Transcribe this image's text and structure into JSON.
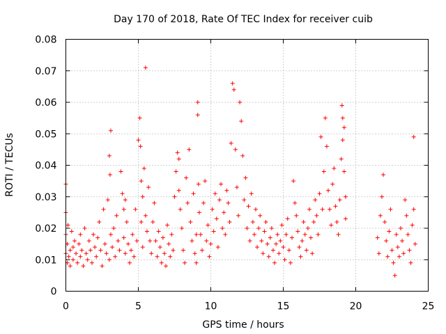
{
  "chart_data": {
    "type": "scatter",
    "title": "Day 170 of 2018, Rate Of TEC Index for receiver cuib",
    "xlabel": "GPS time / hours",
    "ylabel": "ROTI / TECUs",
    "xlim": [
      0,
      25
    ],
    "ylim": [
      0,
      0.08
    ],
    "grid": true,
    "x_ticks": [
      0,
      5,
      10,
      15,
      20,
      25
    ],
    "x_tick_labels": [
      "0",
      "5",
      "10",
      "15",
      "20",
      "25"
    ],
    "y_ticks": [
      0,
      0.01,
      0.02,
      0.03,
      0.04,
      0.05,
      0.06,
      0.07,
      0.08
    ],
    "y_tick_labels": [
      "0",
      "0.01",
      "0.02",
      "0.03",
      "0.04",
      "0.05",
      "0.06",
      "0.07",
      "0.08"
    ],
    "marker": "plus",
    "color": "#ff0000",
    "series": [
      {
        "name": "ROTI",
        "x": [
          0.0,
          0.0,
          0.0,
          0.0,
          0.1,
          0.1,
          0.15,
          0.2,
          0.3,
          0.3,
          0.4,
          0.5,
          0.5,
          0.6,
          0.7,
          0.8,
          0.9,
          1.0,
          1.0,
          1.1,
          1.2,
          1.3,
          1.4,
          1.5,
          1.6,
          1.7,
          1.8,
          1.9,
          2.0,
          2.1,
          2.2,
          2.3,
          2.4,
          2.5,
          2.6,
          2.7,
          2.8,
          2.9,
          3.0,
          3.0,
          3.05,
          3.1,
          3.1,
          3.2,
          3.3,
          3.4,
          3.5,
          3.6,
          3.7,
          3.8,
          3.9,
          4.0,
          4.0,
          4.1,
          4.1,
          4.2,
          4.3,
          4.4,
          4.5,
          4.6,
          4.7,
          4.8,
          4.9,
          5.0,
          5.1,
          5.15,
          5.2,
          5.2,
          5.3,
          5.3,
          5.4,
          5.5,
          5.5,
          5.6,
          5.7,
          5.8,
          5.9,
          6.0,
          6.1,
          6.2,
          6.3,
          6.4,
          6.5,
          6.6,
          6.7,
          6.8,
          6.9,
          7.0,
          7.1,
          7.2,
          7.3,
          7.4,
          7.5,
          7.6,
          7.7,
          7.8,
          7.8,
          7.9,
          8.0,
          8.1,
          8.2,
          8.3,
          8.4,
          8.5,
          8.6,
          8.7,
          8.8,
          8.9,
          9.0,
          9.0,
          9.1,
          9.1,
          9.15,
          9.2,
          9.3,
          9.4,
          9.5,
          9.6,
          9.7,
          9.8,
          9.9,
          10.0,
          10.1,
          10.2,
          10.3,
          10.4,
          10.5,
          10.6,
          10.7,
          10.8,
          10.9,
          11.0,
          11.1,
          11.2,
          11.3,
          11.4,
          11.5,
          11.6,
          11.7,
          11.8,
          11.9,
          12.0,
          12.1,
          12.2,
          12.3,
          12.4,
          12.5,
          12.6,
          12.7,
          12.8,
          12.9,
          13.0,
          13.1,
          13.2,
          13.3,
          13.4,
          13.5,
          13.6,
          13.7,
          13.8,
          13.9,
          14.0,
          14.1,
          14.2,
          14.3,
          14.4,
          14.5,
          14.6,
          14.7,
          14.8,
          14.9,
          15.0,
          15.1,
          15.2,
          15.3,
          15.4,
          15.5,
          15.6,
          15.7,
          15.8,
          15.9,
          16.0,
          16.1,
          16.2,
          16.3,
          16.4,
          16.5,
          16.6,
          16.7,
          16.8,
          16.9,
          17.0,
          17.1,
          17.2,
          17.3,
          17.4,
          17.5,
          17.6,
          17.7,
          17.8,
          17.9,
          18.0,
          18.1,
          18.2,
          18.3,
          18.4,
          18.5,
          18.6,
          18.7,
          18.8,
          18.9,
          19.0,
          19.05,
          19.1,
          19.1,
          19.2,
          19.2,
          19.3,
          19.3,
          21.5,
          21.6,
          21.7,
          21.8,
          21.9,
          22.0,
          22.1,
          22.2,
          22.3,
          22.4,
          22.5,
          22.6,
          22.7,
          22.8,
          22.9,
          23.0,
          23.1,
          23.2,
          23.3,
          23.4,
          23.5,
          23.6,
          23.7,
          23.8,
          23.9,
          24.0,
          24.0,
          24.1
        ],
        "y": [
          0.012,
          0.034,
          0.025,
          0.018,
          0.009,
          0.015,
          0.021,
          0.011,
          0.013,
          0.008,
          0.019,
          0.014,
          0.01,
          0.016,
          0.012,
          0.009,
          0.015,
          0.011,
          0.018,
          0.013,
          0.008,
          0.02,
          0.012,
          0.01,
          0.016,
          0.013,
          0.009,
          0.018,
          0.014,
          0.011,
          0.017,
          0.022,
          0.013,
          0.008,
          0.026,
          0.015,
          0.012,
          0.029,
          0.01,
          0.043,
          0.037,
          0.051,
          0.018,
          0.014,
          0.02,
          0.011,
          0.024,
          0.016,
          0.013,
          0.038,
          0.031,
          0.026,
          0.017,
          0.012,
          0.029,
          0.022,
          0.015,
          0.009,
          0.013,
          0.018,
          0.011,
          0.026,
          0.016,
          0.048,
          0.055,
          0.046,
          0.035,
          0.022,
          0.014,
          0.03,
          0.039,
          0.071,
          0.024,
          0.019,
          0.033,
          0.016,
          0.012,
          0.022,
          0.028,
          0.016,
          0.011,
          0.019,
          0.014,
          0.009,
          0.017,
          0.012,
          0.008,
          0.021,
          0.015,
          0.011,
          0.018,
          0.013,
          0.03,
          0.038,
          0.044,
          0.042,
          0.032,
          0.026,
          0.02,
          0.013,
          0.009,
          0.036,
          0.028,
          0.045,
          0.022,
          0.016,
          0.031,
          0.012,
          0.009,
          0.018,
          0.06,
          0.056,
          0.034,
          0.025,
          0.018,
          0.013,
          0.028,
          0.035,
          0.016,
          0.021,
          0.011,
          0.015,
          0.026,
          0.019,
          0.031,
          0.023,
          0.014,
          0.029,
          0.034,
          0.02,
          0.025,
          0.018,
          0.032,
          0.028,
          0.022,
          0.047,
          0.066,
          0.064,
          0.045,
          0.033,
          0.024,
          0.06,
          0.054,
          0.043,
          0.029,
          0.036,
          0.02,
          0.027,
          0.016,
          0.031,
          0.022,
          0.018,
          0.026,
          0.014,
          0.02,
          0.024,
          0.016,
          0.012,
          0.019,
          0.022,
          0.015,
          0.011,
          0.017,
          0.02,
          0.013,
          0.009,
          0.015,
          0.018,
          0.012,
          0.016,
          0.021,
          0.014,
          0.01,
          0.018,
          0.023,
          0.013,
          0.009,
          0.017,
          0.035,
          0.028,
          0.024,
          0.019,
          0.014,
          0.011,
          0.016,
          0.022,
          0.018,
          0.013,
          0.02,
          0.026,
          0.017,
          0.012,
          0.022,
          0.029,
          0.024,
          0.018,
          0.031,
          0.049,
          0.026,
          0.038,
          0.055,
          0.046,
          0.032,
          0.026,
          0.021,
          0.034,
          0.039,
          0.027,
          0.022,
          0.018,
          0.029,
          0.042,
          0.059,
          0.055,
          0.048,
          0.038,
          0.052,
          0.03,
          0.023,
          0.017,
          0.012,
          0.024,
          0.03,
          0.037,
          0.022,
          0.016,
          0.011,
          0.019,
          0.026,
          0.013,
          0.009,
          0.005,
          0.018,
          0.014,
          0.011,
          0.02,
          0.016,
          0.012,
          0.029,
          0.024,
          0.018,
          0.013,
          0.009,
          0.021,
          0.049,
          0.026,
          0.015
        ]
      }
    ]
  }
}
